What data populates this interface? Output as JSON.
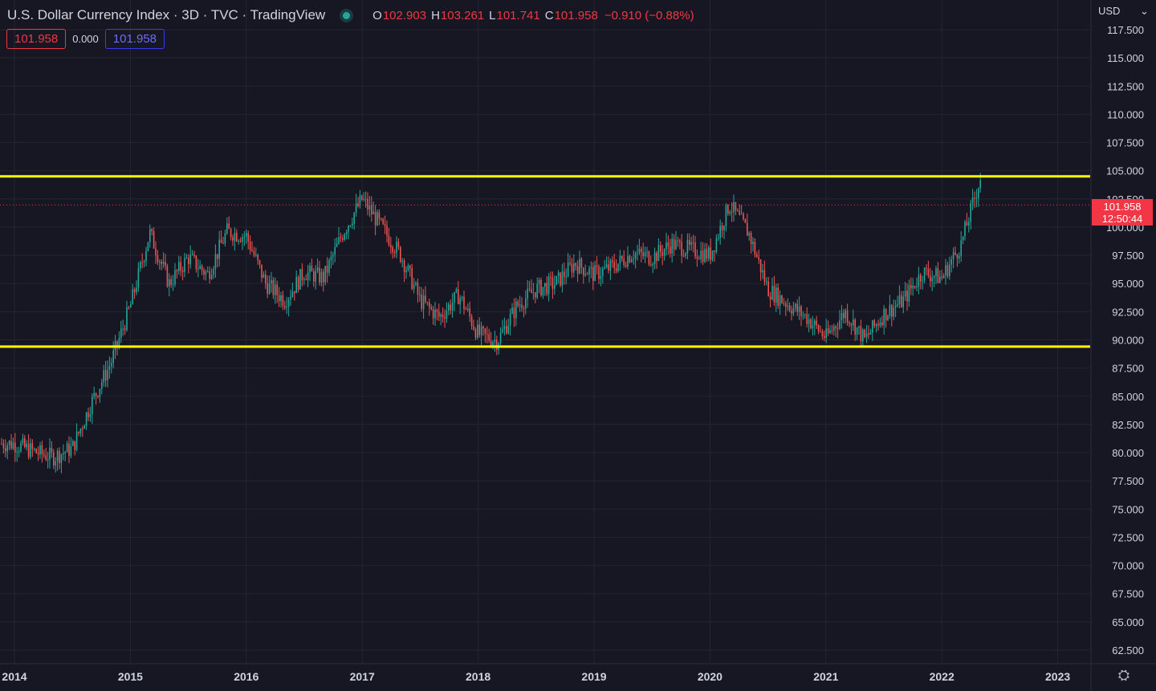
{
  "header": {
    "title": "U.S. Dollar Currency Index · 3D · TVC · TradingView",
    "open_label": "O",
    "open": "102.903",
    "high_label": "H",
    "high": "103.261",
    "low_label": "L",
    "low": "101.741",
    "close_label": "C",
    "close": "101.958",
    "change": "−0.910 (−0.88%)",
    "value_box_1": "101.958",
    "value_plain": "0.000",
    "value_box_2": "101.958"
  },
  "axis": {
    "currency": "USD",
    "currency_chevron": "⌄",
    "last_price": "101.958",
    "countdown": "12:50:44",
    "settings_icon": "⛭"
  },
  "colors": {
    "background": "#161722",
    "up": "#26a69a",
    "down": "#ef5350",
    "levels": "#ffff00",
    "grid": "#23252f"
  },
  "chart_data": {
    "type": "candlestick",
    "y_axis": {
      "min": 61.5,
      "max": 118.5,
      "ticks": [
        "117.500",
        "115.000",
        "112.500",
        "110.000",
        "107.500",
        "105.000",
        "102.500",
        "100.000",
        "97.500",
        "95.000",
        "92.500",
        "90.000",
        "87.500",
        "85.000",
        "82.500",
        "80.000",
        "77.500",
        "75.000",
        "72.500",
        "70.000",
        "67.500",
        "65.000",
        "62.500"
      ]
    },
    "x_axis": {
      "ticks": [
        "2014",
        "2015",
        "2016",
        "2017",
        "2018",
        "2019",
        "2020",
        "2021",
        "2022",
        "2023"
      ]
    },
    "horizontal_levels": [
      104.5,
      89.4
    ],
    "last_price": 101.958,
    "price_path": [
      [
        "2014-01",
        80.8
      ],
      [
        "2014-03",
        80.1
      ],
      [
        "2014-05",
        79.6
      ],
      [
        "2014-07",
        80.4
      ],
      [
        "2014-09",
        84.5
      ],
      [
        "2014-11",
        88.0
      ],
      [
        "2015-01",
        93.0
      ],
      [
        "2015-03",
        99.5
      ],
      [
        "2015-05",
        95.0
      ],
      [
        "2015-07",
        97.3
      ],
      [
        "2015-09",
        95.8
      ],
      [
        "2015-11",
        99.6
      ],
      [
        "2016-01",
        99.2
      ],
      [
        "2016-03",
        95.0
      ],
      [
        "2016-05",
        93.5
      ],
      [
        "2016-07",
        96.0
      ],
      [
        "2016-09",
        95.5
      ],
      [
        "2016-11",
        99.5
      ],
      [
        "2017-01",
        102.5
      ],
      [
        "2017-03",
        100.0
      ],
      [
        "2017-05",
        97.5
      ],
      [
        "2017-07",
        93.5
      ],
      [
        "2017-09",
        92.0
      ],
      [
        "2017-11",
        94.0
      ],
      [
        "2018-01",
        90.5
      ],
      [
        "2018-03",
        89.9
      ],
      [
        "2018-05",
        93.0
      ],
      [
        "2018-07",
        94.5
      ],
      [
        "2018-09",
        95.0
      ],
      [
        "2018-11",
        96.8
      ],
      [
        "2019-01",
        95.8
      ],
      [
        "2019-03",
        96.5
      ],
      [
        "2019-05",
        97.7
      ],
      [
        "2019-07",
        97.3
      ],
      [
        "2019-09",
        98.5
      ],
      [
        "2019-11",
        98.0
      ],
      [
        "2020-01",
        97.5
      ],
      [
        "2020-03",
        102.0
      ],
      [
        "2020-05",
        99.5
      ],
      [
        "2020-07",
        94.5
      ],
      [
        "2020-09",
        93.2
      ],
      [
        "2020-11",
        92.0
      ],
      [
        "2021-01",
        90.2
      ],
      [
        "2021-03",
        92.5
      ],
      [
        "2021-05",
        90.0
      ],
      [
        "2021-07",
        92.3
      ],
      [
        "2021-09",
        93.5
      ],
      [
        "2021-11",
        96.0
      ],
      [
        "2022-01",
        95.5
      ],
      [
        "2022-03",
        98.5
      ],
      [
        "2022-05",
        104.4
      ],
      [
        "2022-05",
        101.958
      ]
    ]
  }
}
